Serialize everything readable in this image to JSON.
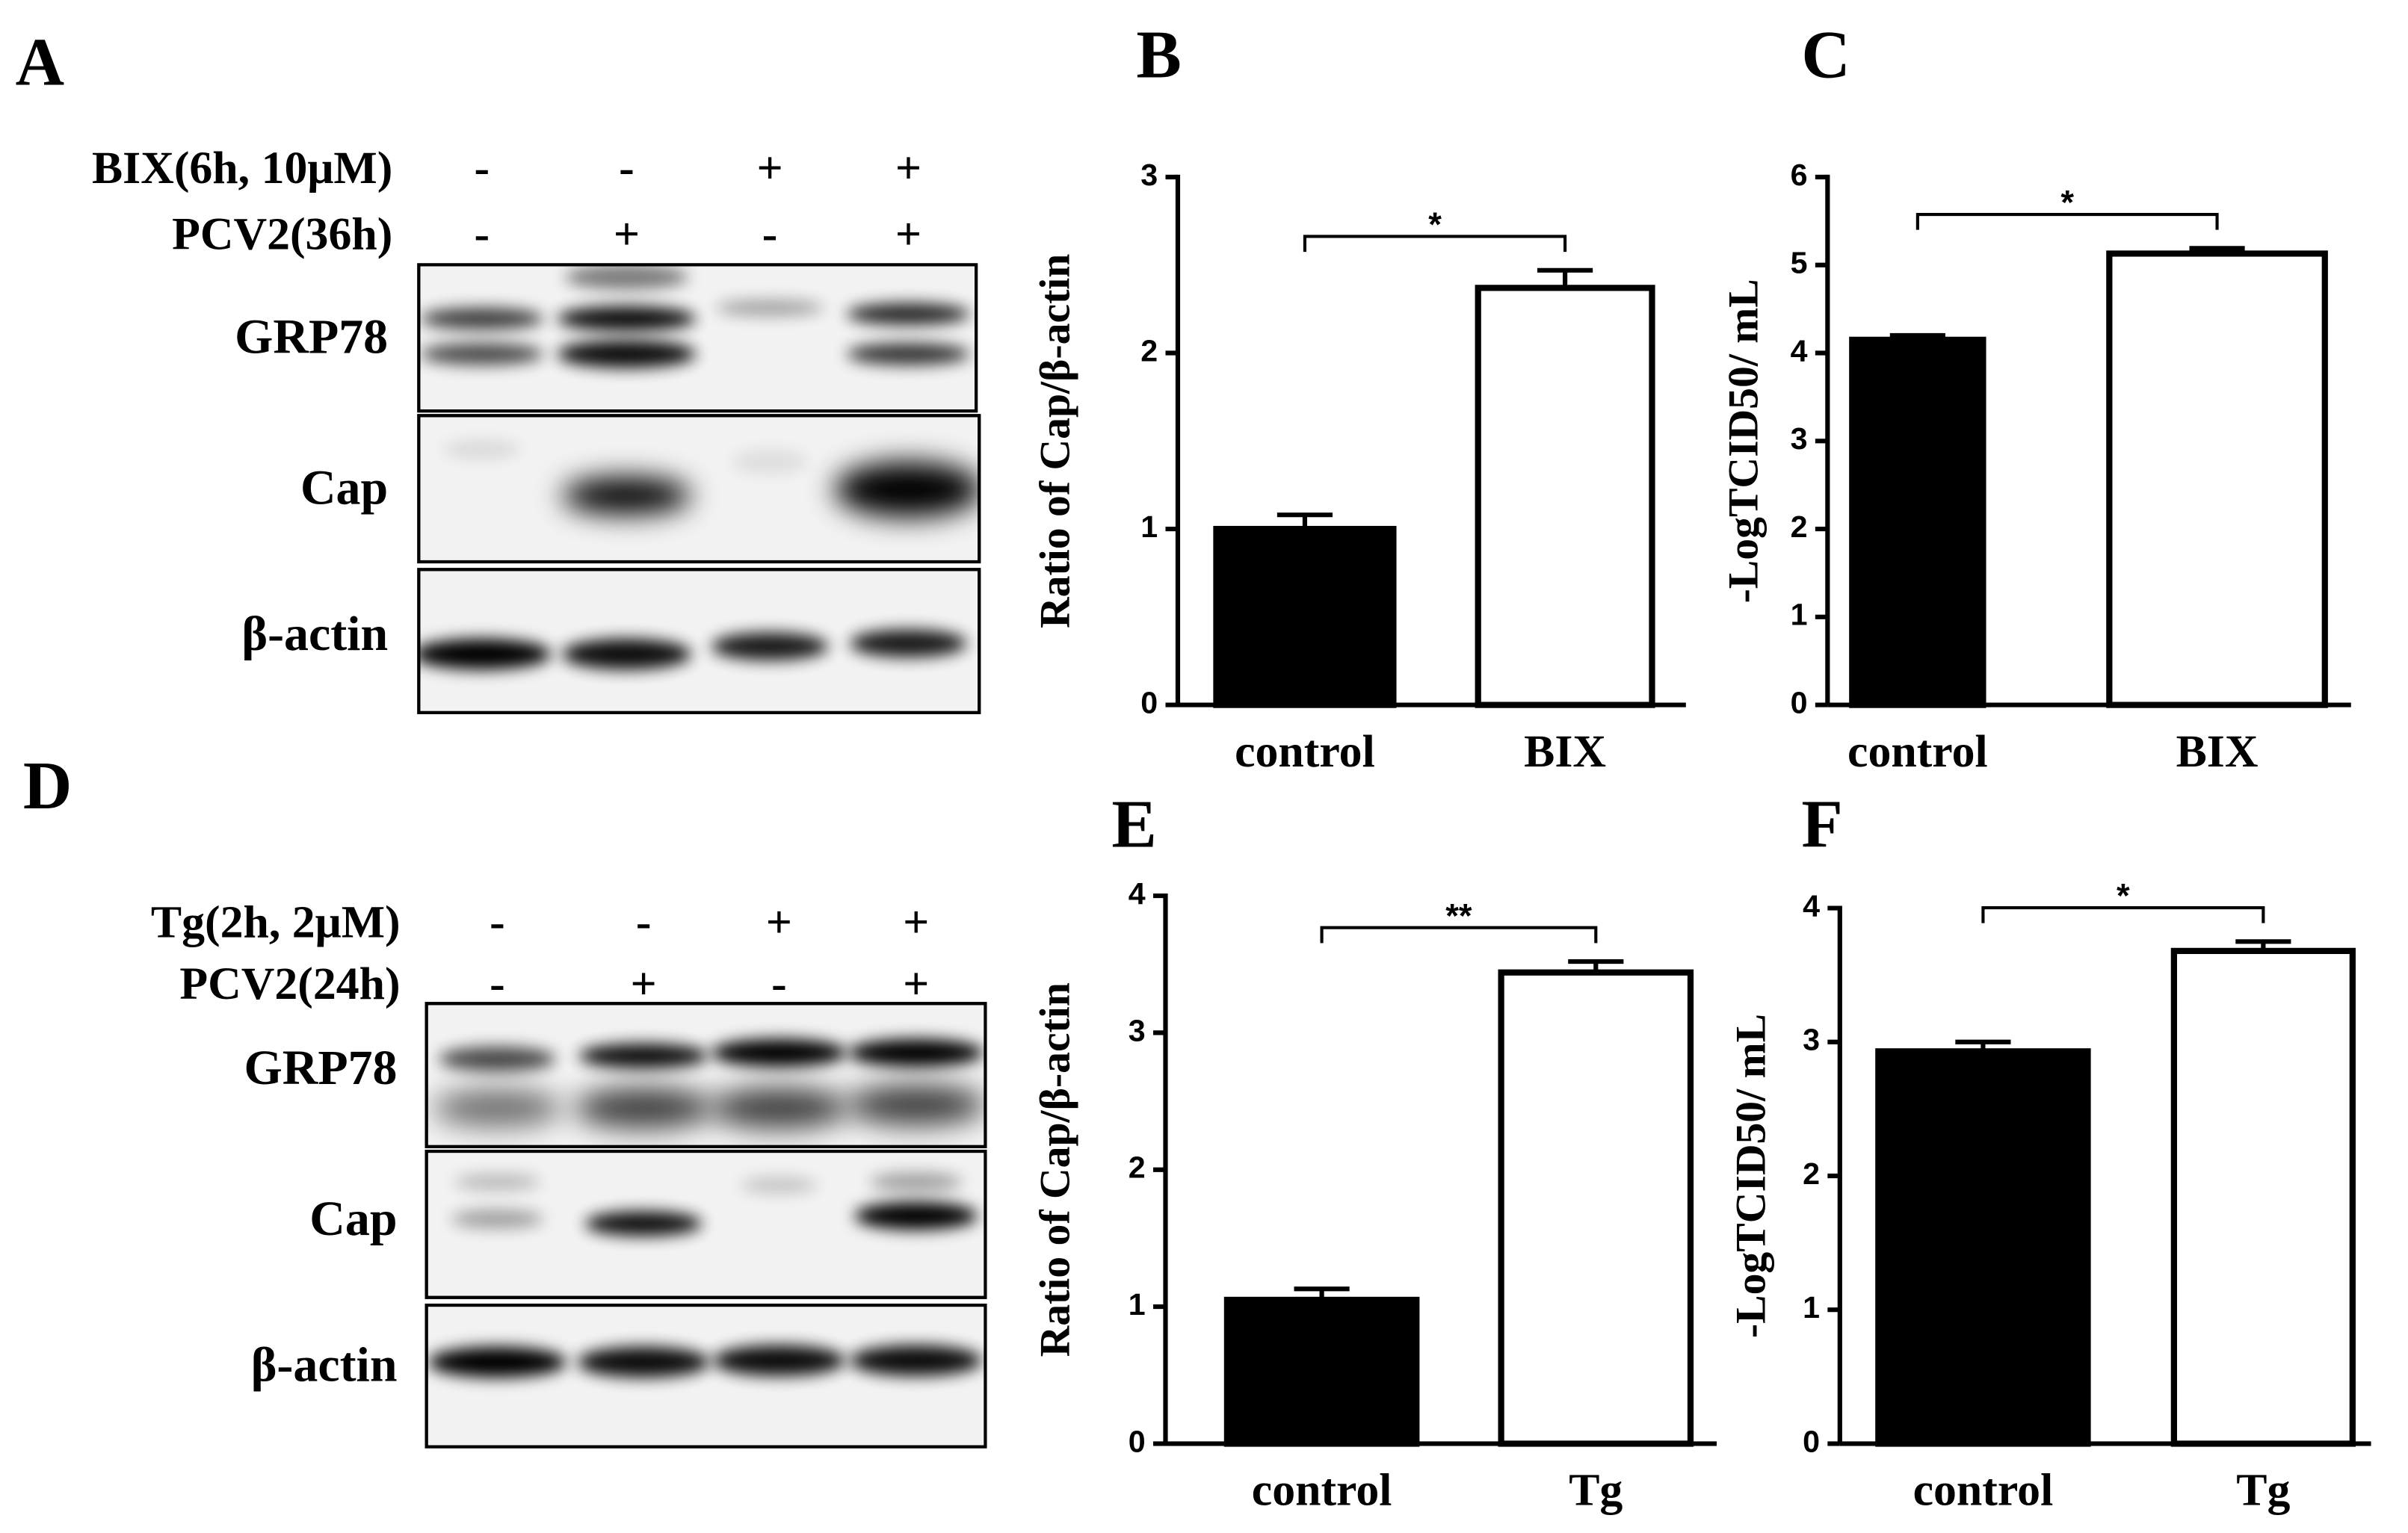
{
  "blots": [
    {
      "panel": "A",
      "treatments": [
        {
          "label": "BIX(6h, 10μM)",
          "signs": [
            "-",
            "-",
            "+",
            "+"
          ]
        },
        {
          "label": "PCV2(36h)",
          "signs": [
            "-",
            "+",
            "-",
            "+"
          ]
        }
      ],
      "rows": [
        "GRP78",
        "Cap",
        "β-actin"
      ]
    },
    {
      "panel": "D",
      "treatments": [
        {
          "label": "Tg(2h, 2μM)",
          "signs": [
            "-",
            "-",
            "+",
            "+"
          ]
        },
        {
          "label": "PCV2(24h)",
          "signs": [
            "-",
            "+",
            "-",
            "+"
          ]
        }
      ],
      "rows": [
        "GRP78",
        "Cap",
        "β-actin"
      ]
    }
  ],
  "chart_data": [
    {
      "type": "bar",
      "panel": "B",
      "ylabel": "Ratio of Cap/β-actin",
      "categories": [
        "control",
        "BIX"
      ],
      "values": [
        1.0,
        2.37
      ],
      "errors": [
        0.08,
        0.1
      ],
      "colors": [
        "#000000",
        "#ffffff"
      ],
      "ylim": [
        0,
        3
      ],
      "yticks": [
        0,
        1,
        2,
        3
      ],
      "significance": "*"
    },
    {
      "type": "bar",
      "panel": "C",
      "ylabel": "-LogTCID50/ mL",
      "categories": [
        "control",
        "BIX"
      ],
      "values": [
        4.15,
        5.13
      ],
      "errors": [
        0.05,
        0.06
      ],
      "colors": [
        "#000000",
        "#ffffff"
      ],
      "ylim": [
        0,
        6
      ],
      "yticks": [
        0,
        1,
        2,
        3,
        4,
        5,
        6
      ],
      "significance": "*"
    },
    {
      "type": "bar",
      "panel": "E",
      "ylabel": "Ratio of Cap/β-actin",
      "categories": [
        "control",
        "Tg"
      ],
      "values": [
        1.05,
        3.44
      ],
      "errors": [
        0.08,
        0.08
      ],
      "colors": [
        "#000000",
        "#ffffff"
      ],
      "ylim": [
        0,
        4
      ],
      "yticks": [
        0,
        1,
        2,
        3,
        4
      ],
      "significance": "**"
    },
    {
      "type": "bar",
      "panel": "F",
      "ylabel": "-LogTCID50/ mL",
      "categories": [
        "control",
        "Tg"
      ],
      "values": [
        2.93,
        3.68
      ],
      "errors": [
        0.07,
        0.07
      ],
      "colors": [
        "#000000",
        "#ffffff"
      ],
      "ylim": [
        0,
        4
      ],
      "yticks": [
        0,
        1,
        2,
        3,
        4
      ],
      "significance": "*"
    }
  ]
}
